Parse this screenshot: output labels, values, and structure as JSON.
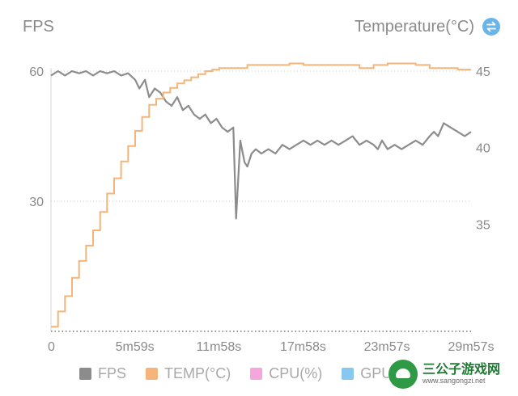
{
  "header": {
    "left_title": "FPS",
    "right_title": "Temperature(°C)",
    "swap_icon": "swap-arrows-icon"
  },
  "legend": [
    {
      "label": "FPS",
      "color": "#8c8c8c"
    },
    {
      "label": "TEMP(°C)",
      "color": "#f5b47a"
    },
    {
      "label": "CPU(%)",
      "color": "#f5a6dd"
    },
    {
      "label": "GPU",
      "color": "#86c8f0"
    }
  ],
  "watermark": {
    "name": "三公子游戏网",
    "url": "www.sangongzi.net"
  },
  "chart_data": {
    "type": "line",
    "x_tick_labels": [
      "0",
      "5m59s",
      "11m58s",
      "17m58s",
      "23m57s",
      "29m57s"
    ],
    "x_tick_minutes": [
      0,
      5.98,
      11.97,
      17.97,
      23.95,
      29.95
    ],
    "left_axis": {
      "label": "FPS",
      "ticks": [
        30,
        60
      ],
      "range": [
        0,
        60
      ]
    },
    "right_axis": {
      "label": "Temperature(°C)",
      "ticks": [
        35,
        40,
        45
      ],
      "range": [
        28,
        45
      ]
    },
    "grid": "dotted horizontal at 0, 30 and 60 FPS",
    "legend_position": "bottom",
    "series": [
      {
        "name": "FPS",
        "axis": "left",
        "color": "#8c8c8c",
        "x_minutes": [
          0,
          0.5,
          1,
          1.5,
          2,
          2.5,
          3,
          3.5,
          4,
          4.5,
          5,
          5.5,
          6,
          6.3,
          6.7,
          7,
          7.4,
          7.8,
          8.2,
          8.6,
          9,
          9.4,
          9.8,
          10.2,
          10.6,
          11,
          11.4,
          11.8,
          12.2,
          12.6,
          13,
          13.2,
          13.5,
          13.8,
          14,
          14.3,
          14.6,
          15,
          15.5,
          16,
          16.5,
          17,
          17.5,
          18,
          18.5,
          19,
          19.5,
          20,
          20.5,
          21,
          21.5,
          22,
          22.5,
          23,
          23.3,
          23.6,
          24,
          24.5,
          25,
          25.5,
          26,
          26.5,
          27,
          27.3,
          27.6,
          28,
          28.5,
          29,
          29.5,
          29.95
        ],
        "values": [
          59,
          60,
          59,
          60,
          59.5,
          60,
          59,
          60,
          59.5,
          60,
          59,
          59.5,
          58,
          56,
          58,
          54,
          56,
          55,
          53,
          52,
          54,
          51,
          52,
          50,
          49,
          50,
          48,
          49,
          47,
          46,
          47,
          26,
          44,
          39,
          38,
          41,
          42,
          41,
          42,
          41,
          43,
          42,
          43,
          44,
          43,
          44,
          43,
          44,
          43,
          44,
          45,
          43,
          44,
          43,
          42,
          44,
          42,
          43,
          42,
          43,
          44,
          43,
          45,
          46,
          45,
          48,
          47,
          46,
          45,
          46
        ]
      },
      {
        "name": "TEMP(°C)",
        "axis": "right",
        "color": "#f5b47a",
        "x_minutes": [
          0,
          0.5,
          1,
          1.5,
          2,
          2.5,
          3,
          3.5,
          4,
          4.5,
          5,
          5.5,
          6,
          6.5,
          7,
          7.5,
          8,
          8.5,
          9,
          9.5,
          10,
          10.5,
          11,
          11.5,
          12,
          13,
          14,
          15,
          16,
          17,
          18,
          19,
          20,
          21,
          22,
          23,
          24,
          25,
          26,
          27,
          28,
          29,
          29.95
        ],
        "values": [
          28.3,
          29.3,
          30.3,
          31.5,
          32.6,
          33.6,
          34.6,
          35.8,
          37,
          38,
          39.1,
          40.1,
          41.1,
          42,
          42.8,
          43.2,
          43.6,
          43.9,
          44.2,
          44.4,
          44.6,
          44.8,
          45,
          45.1,
          45.2,
          45.2,
          45.4,
          45.4,
          45.4,
          45.5,
          45.4,
          45.4,
          45.4,
          45.4,
          45.2,
          45.4,
          45.5,
          45.5,
          45.4,
          45.2,
          45.2,
          45.1,
          45.1
        ]
      }
    ]
  }
}
